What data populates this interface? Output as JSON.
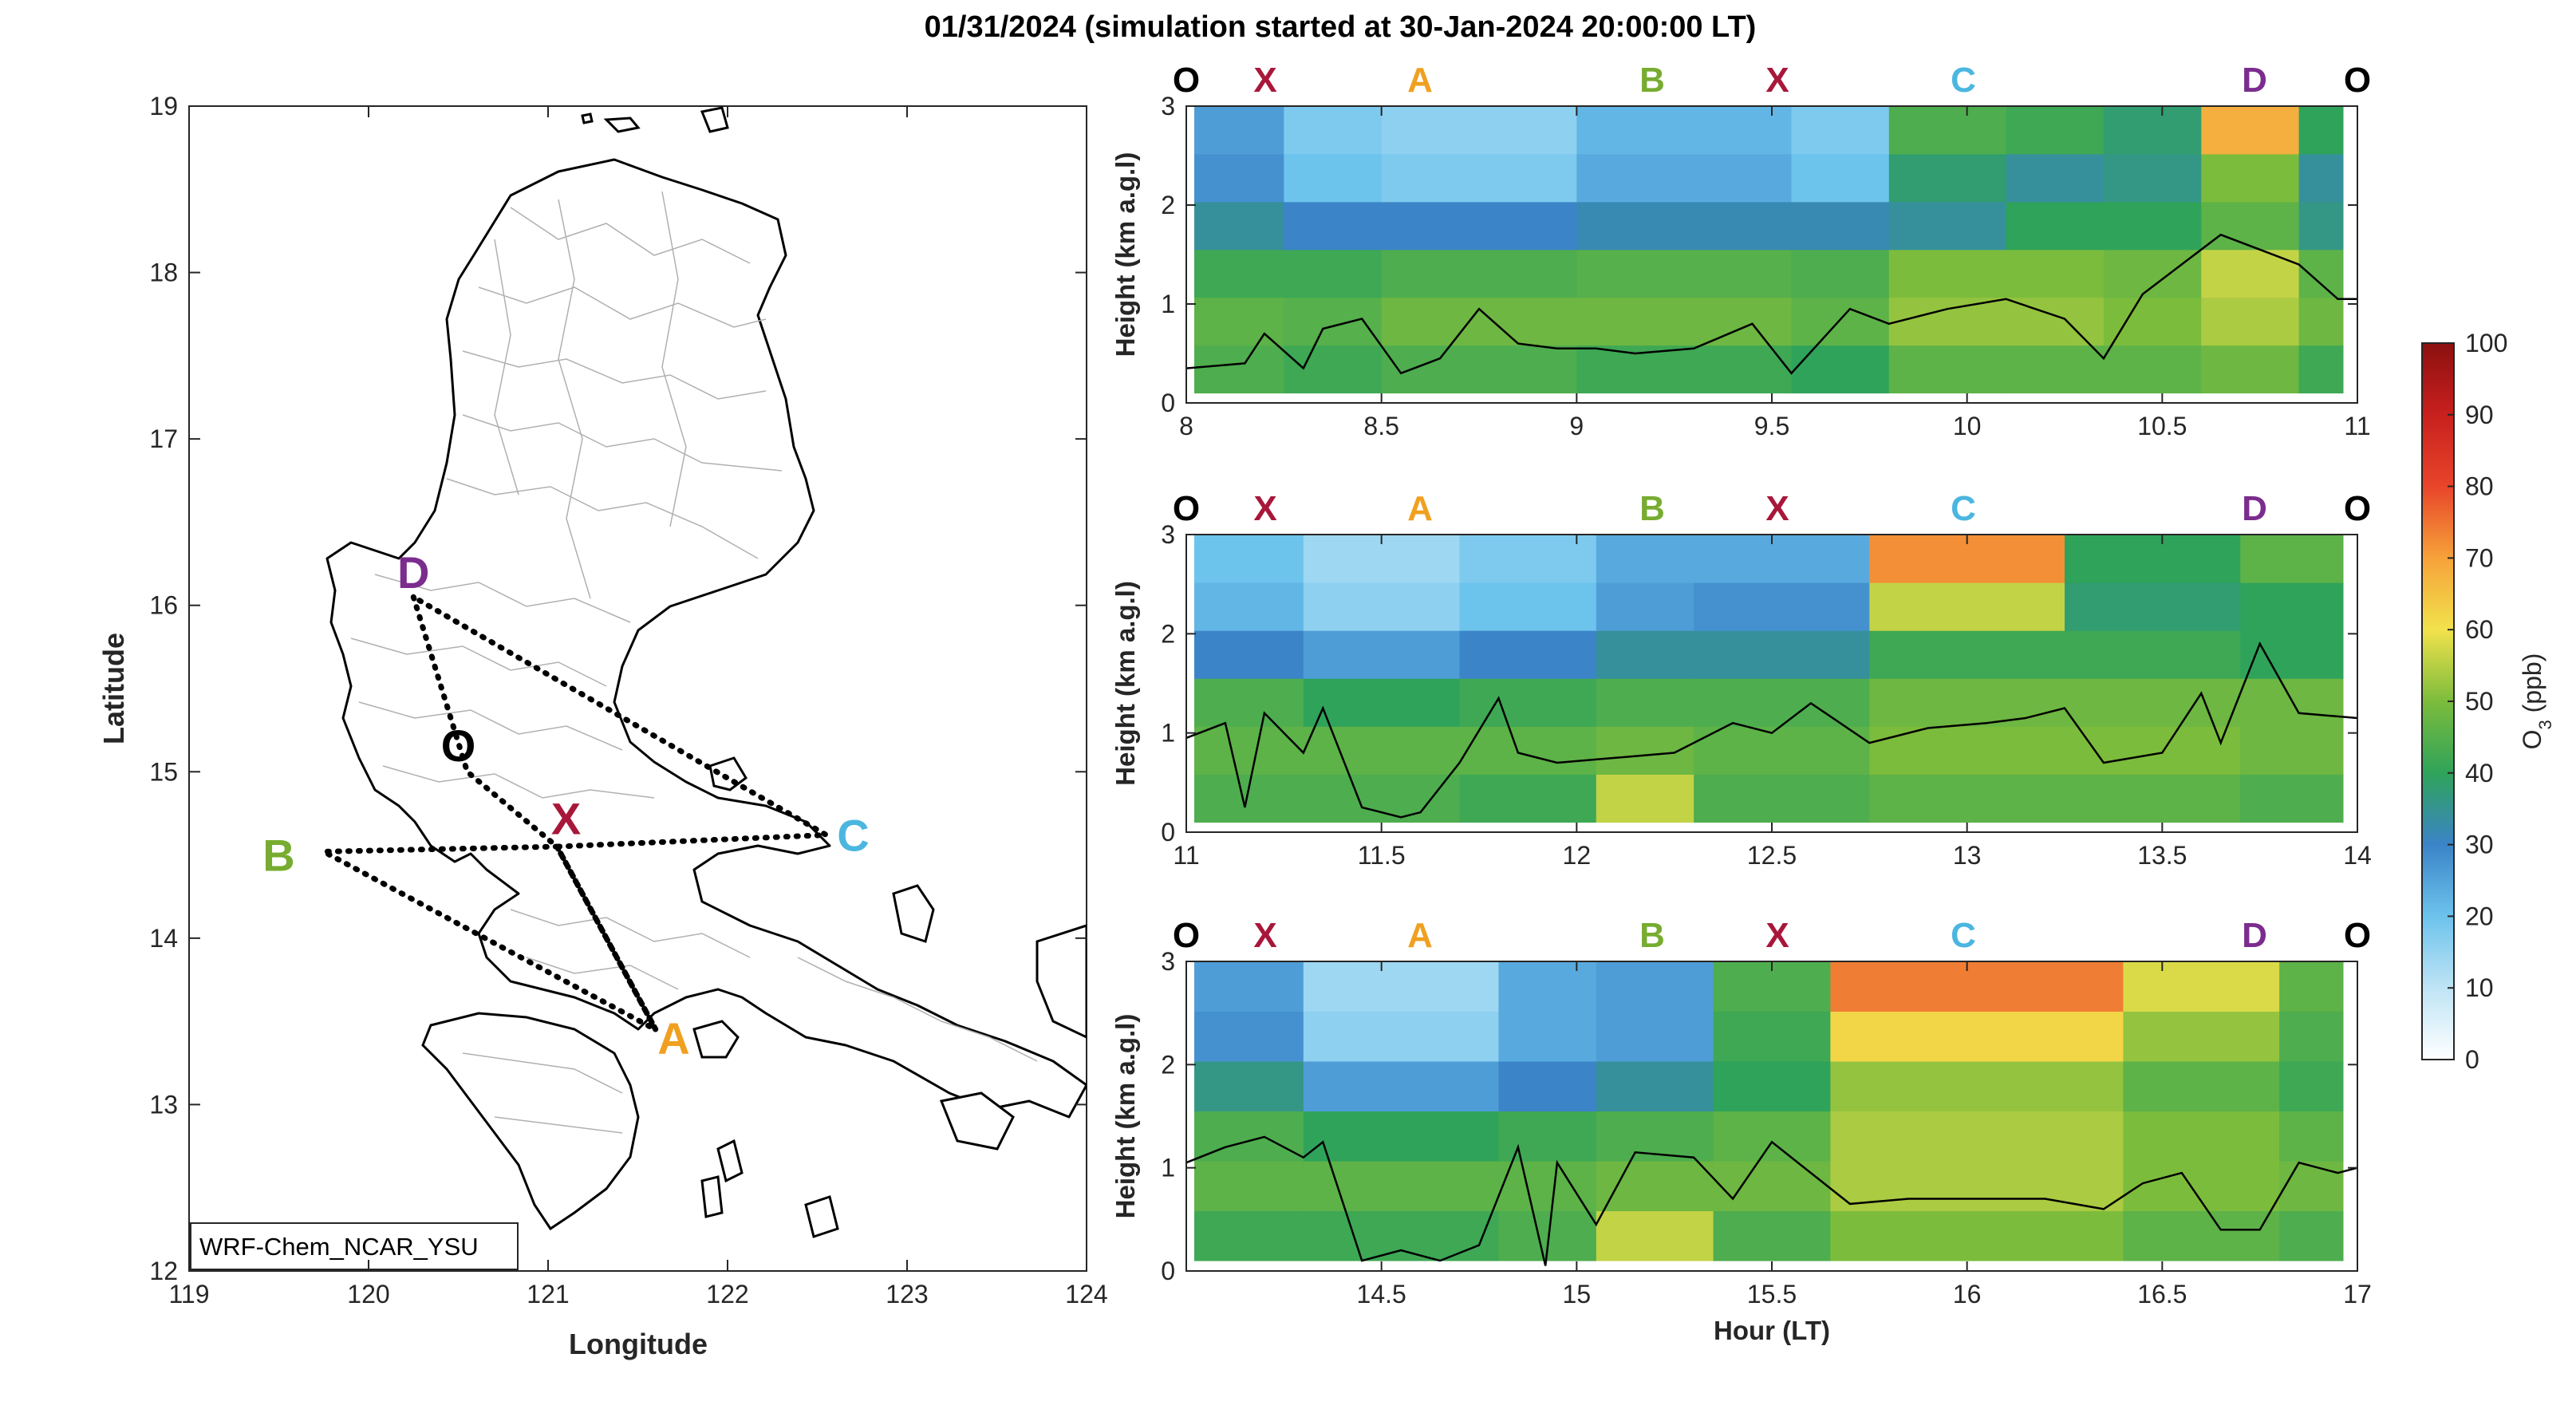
{
  "title": "01/31/2024 (simulation started at 30-Jan-2024 20:00:00 LT)",
  "map": {
    "xlabel": "Longitude",
    "ylabel": "Latitude",
    "xlim": [
      119,
      124
    ],
    "ylim": [
      12,
      19
    ],
    "xticks": [
      "119",
      "120",
      "121",
      "122",
      "123",
      "124"
    ],
    "yticks": [
      "12",
      "13",
      "14",
      "15",
      "16",
      "17",
      "18",
      "19"
    ],
    "model_label": "WRF-Chem_NCAR_YSU",
    "sites": [
      {
        "label": "D",
        "lon": 120.25,
        "lat": 16.2,
        "color": "#7b2d8e"
      },
      {
        "label": "O",
        "lon": 120.5,
        "lat": 15.16,
        "color": "#000000"
      },
      {
        "label": "X",
        "lon": 121.1,
        "lat": 14.72,
        "color": "#a8173a"
      },
      {
        "label": "C",
        "lon": 122.7,
        "lat": 14.62,
        "color": "#4bb6e0"
      },
      {
        "label": "B",
        "lon": 119.5,
        "lat": 14.5,
        "color": "#77ac30"
      },
      {
        "label": "A",
        "lon": 121.7,
        "lat": 13.4,
        "color": "#f0a020"
      }
    ],
    "route": [
      [
        120.25,
        16.05
      ],
      [
        120.55,
        15.0
      ],
      [
        121.05,
        14.55
      ],
      [
        121.6,
        13.45
      ],
      [
        121.05,
        14.55
      ],
      [
        119.75,
        14.52
      ],
      [
        121.6,
        13.45
      ],
      [
        121.05,
        14.55
      ],
      [
        122.55,
        14.62
      ],
      [
        120.25,
        16.05
      ]
    ]
  },
  "colorbar": {
    "label": "O3 (ppb)",
    "ticks": [
      "0",
      "10",
      "20",
      "30",
      "40",
      "50",
      "60",
      "70",
      "80",
      "90",
      "100"
    ],
    "range": [
      0,
      100
    ]
  },
  "site_markers": [
    {
      "label": "O",
      "color": "#000000"
    },
    {
      "label": "X",
      "color": "#a8173a"
    },
    {
      "label": "A",
      "color": "#f0a020"
    },
    {
      "label": "B",
      "color": "#77ac30"
    },
    {
      "label": "X",
      "color": "#a8173a"
    },
    {
      "label": "C",
      "color": "#4bb6e0"
    },
    {
      "label": "D",
      "color": "#7b2d8e"
    },
    {
      "label": "O",
      "color": "#000000"
    }
  ],
  "chart_data": [
    {
      "type": "heatmap",
      "title": "",
      "ylabel": "Height (km a.g.l)",
      "xlabel": "",
      "xlim": [
        8,
        11
      ],
      "ylim": [
        0,
        3
      ],
      "xticks": [
        "8",
        "8.5",
        "9",
        "9.5",
        "10",
        "10.5",
        "11"
      ],
      "yticks": [
        "0",
        "1",
        "2",
        "3"
      ],
      "pbl_height": {
        "x": [
          8.0,
          8.15,
          8.2,
          8.3,
          8.35,
          8.45,
          8.55,
          8.65,
          8.75,
          8.85,
          8.95,
          9.05,
          9.15,
          9.3,
          9.45,
          9.55,
          9.7,
          9.8,
          9.95,
          10.1,
          10.25,
          10.35,
          10.45,
          10.55,
          10.65,
          10.75,
          10.85,
          10.95,
          11.0
        ],
        "y": [
          0.35,
          0.4,
          0.7,
          0.35,
          0.75,
          0.85,
          0.3,
          0.45,
          0.95,
          0.6,
          0.55,
          0.55,
          0.5,
          0.55,
          0.8,
          0.3,
          0.95,
          0.8,
          0.95,
          1.05,
          0.85,
          0.45,
          1.1,
          1.4,
          1.7,
          1.55,
          1.4,
          1.05,
          1.05
        ],
        "color": "#000000"
      },
      "columns": [
        {
          "x": [
            8.0,
            8.25
          ],
          "profile": [
            44,
            46,
            42,
            34,
            28,
            26
          ]
        },
        {
          "x": [
            8.25,
            8.5
          ],
          "profile": [
            42,
            45,
            42,
            30,
            20,
            18
          ]
        },
        {
          "x": [
            8.5,
            9.0
          ],
          "profile": [
            44,
            48,
            44,
            30,
            18,
            16
          ]
        },
        {
          "x": [
            9.0,
            9.55
          ],
          "profile": [
            42,
            48,
            45,
            32,
            24,
            22
          ]
        },
        {
          "x": [
            9.55,
            9.8
          ],
          "profile": [
            40,
            46,
            44,
            32,
            20,
            18
          ]
        },
        {
          "x": [
            9.8,
            10.1
          ],
          "profile": [
            46,
            52,
            50,
            34,
            38,
            44
          ]
        },
        {
          "x": [
            10.1,
            10.35
          ],
          "profile": [
            46,
            52,
            50,
            40,
            34,
            42
          ]
        },
        {
          "x": [
            10.35,
            10.6
          ],
          "profile": [
            46,
            50,
            48,
            40,
            36,
            38
          ]
        },
        {
          "x": [
            10.6,
            10.85
          ],
          "profile": [
            48,
            54,
            56,
            46,
            50,
            68
          ]
        },
        {
          "x": [
            10.85,
            11.0
          ],
          "profile": [
            42,
            48,
            46,
            36,
            34,
            40
          ]
        }
      ]
    },
    {
      "type": "heatmap",
      "title": "",
      "ylabel": "Height (km a.g.l)",
      "xlabel": "",
      "xlim": [
        11,
        14
      ],
      "ylim": [
        0,
        3
      ],
      "xticks": [
        "11",
        "11.5",
        "12",
        "12.5",
        "13",
        "13.5",
        "14"
      ],
      "yticks": [
        "0",
        "1",
        "2",
        "3"
      ],
      "pbl_height": {
        "x": [
          11.0,
          11.1,
          11.15,
          11.2,
          11.3,
          11.35,
          11.45,
          11.55,
          11.6,
          11.7,
          11.8,
          11.85,
          11.95,
          12.1,
          12.25,
          12.4,
          12.5,
          12.6,
          12.75,
          12.9,
          13.05,
          13.15,
          13.25,
          13.35,
          13.5,
          13.6,
          13.65,
          13.75,
          13.85,
          14.0
        ],
        "y": [
          0.95,
          1.1,
          0.25,
          1.2,
          0.8,
          1.25,
          0.25,
          0.15,
          0.2,
          0.7,
          1.35,
          0.8,
          0.7,
          0.75,
          0.8,
          1.1,
          1.0,
          1.3,
          0.9,
          1.05,
          1.1,
          1.15,
          1.25,
          0.7,
          0.8,
          1.4,
          0.9,
          1.9,
          1.2,
          1.15
        ],
        "color": "#000000"
      },
      "columns": [
        {
          "x": [
            11.0,
            11.3
          ],
          "profile": [
            44,
            46,
            44,
            30,
            22,
            20
          ]
        },
        {
          "x": [
            11.3,
            11.7
          ],
          "profile": [
            44,
            46,
            40,
            26,
            16,
            14
          ]
        },
        {
          "x": [
            11.7,
            12.05
          ],
          "profile": [
            42,
            46,
            42,
            30,
            20,
            18
          ]
        },
        {
          "x": [
            12.05,
            12.3
          ],
          "profile": [
            56,
            48,
            44,
            34,
            26,
            24
          ]
        },
        {
          "x": [
            12.3,
            12.75
          ],
          "profile": [
            44,
            46,
            44,
            34,
            28,
            24
          ]
        },
        {
          "x": [
            12.75,
            13.25
          ],
          "profile": [
            46,
            50,
            48,
            42,
            56,
            72
          ]
        },
        {
          "x": [
            13.25,
            13.7
          ],
          "profile": [
            46,
            50,
            48,
            42,
            38,
            40
          ]
        },
        {
          "x": [
            13.7,
            14.0
          ],
          "profile": [
            44,
            48,
            48,
            40,
            40,
            46
          ]
        }
      ]
    },
    {
      "type": "heatmap",
      "title": "",
      "ylabel": "Height (km a.g.l)",
      "xlabel": "Hour (LT)",
      "xlim": [
        14,
        17
      ],
      "ylim": [
        0,
        3
      ],
      "xticks": [
        "14.5",
        "15",
        "15.5",
        "16",
        "16.5",
        "17"
      ],
      "yticks": [
        "0",
        "1",
        "2",
        "3"
      ],
      "pbl_height": {
        "x": [
          14.0,
          14.1,
          14.2,
          14.3,
          14.35,
          14.45,
          14.55,
          14.65,
          14.75,
          14.85,
          14.92,
          14.95,
          15.05,
          15.15,
          15.3,
          15.4,
          15.5,
          15.6,
          15.7,
          15.85,
          16.0,
          16.2,
          16.35,
          16.45,
          16.55,
          16.65,
          16.75,
          16.85,
          16.95,
          17.0
        ],
        "y": [
          1.05,
          1.2,
          1.3,
          1.1,
          1.25,
          0.1,
          0.2,
          0.1,
          0.25,
          1.2,
          0.05,
          1.05,
          0.45,
          1.15,
          1.1,
          0.7,
          1.25,
          0.95,
          0.65,
          0.7,
          0.7,
          0.7,
          0.6,
          0.85,
          0.95,
          0.4,
          0.4,
          1.05,
          0.95,
          1.0
        ],
        "color": "#000000"
      },
      "columns": [
        {
          "x": [
            14.0,
            14.3
          ],
          "profile": [
            42,
            46,
            44,
            36,
            28,
            26
          ]
        },
        {
          "x": [
            14.3,
            14.8
          ],
          "profile": [
            42,
            46,
            40,
            26,
            16,
            14
          ]
        },
        {
          "x": [
            14.8,
            15.05
          ],
          "profile": [
            44,
            46,
            42,
            30,
            24,
            24
          ]
        },
        {
          "x": [
            15.05,
            15.35
          ],
          "profile": [
            56,
            48,
            44,
            34,
            26,
            26
          ]
        },
        {
          "x": [
            15.35,
            15.65
          ],
          "profile": [
            44,
            48,
            46,
            40,
            42,
            44
          ]
        },
        {
          "x": [
            15.65,
            16.4
          ],
          "profile": [
            50,
            54,
            54,
            52,
            62,
            74
          ]
        },
        {
          "x": [
            16.4,
            16.8
          ],
          "profile": [
            46,
            50,
            50,
            46,
            52,
            58
          ]
        },
        {
          "x": [
            16.8,
            17.0
          ],
          "profile": [
            44,
            48,
            46,
            42,
            44,
            46
          ]
        }
      ]
    }
  ]
}
